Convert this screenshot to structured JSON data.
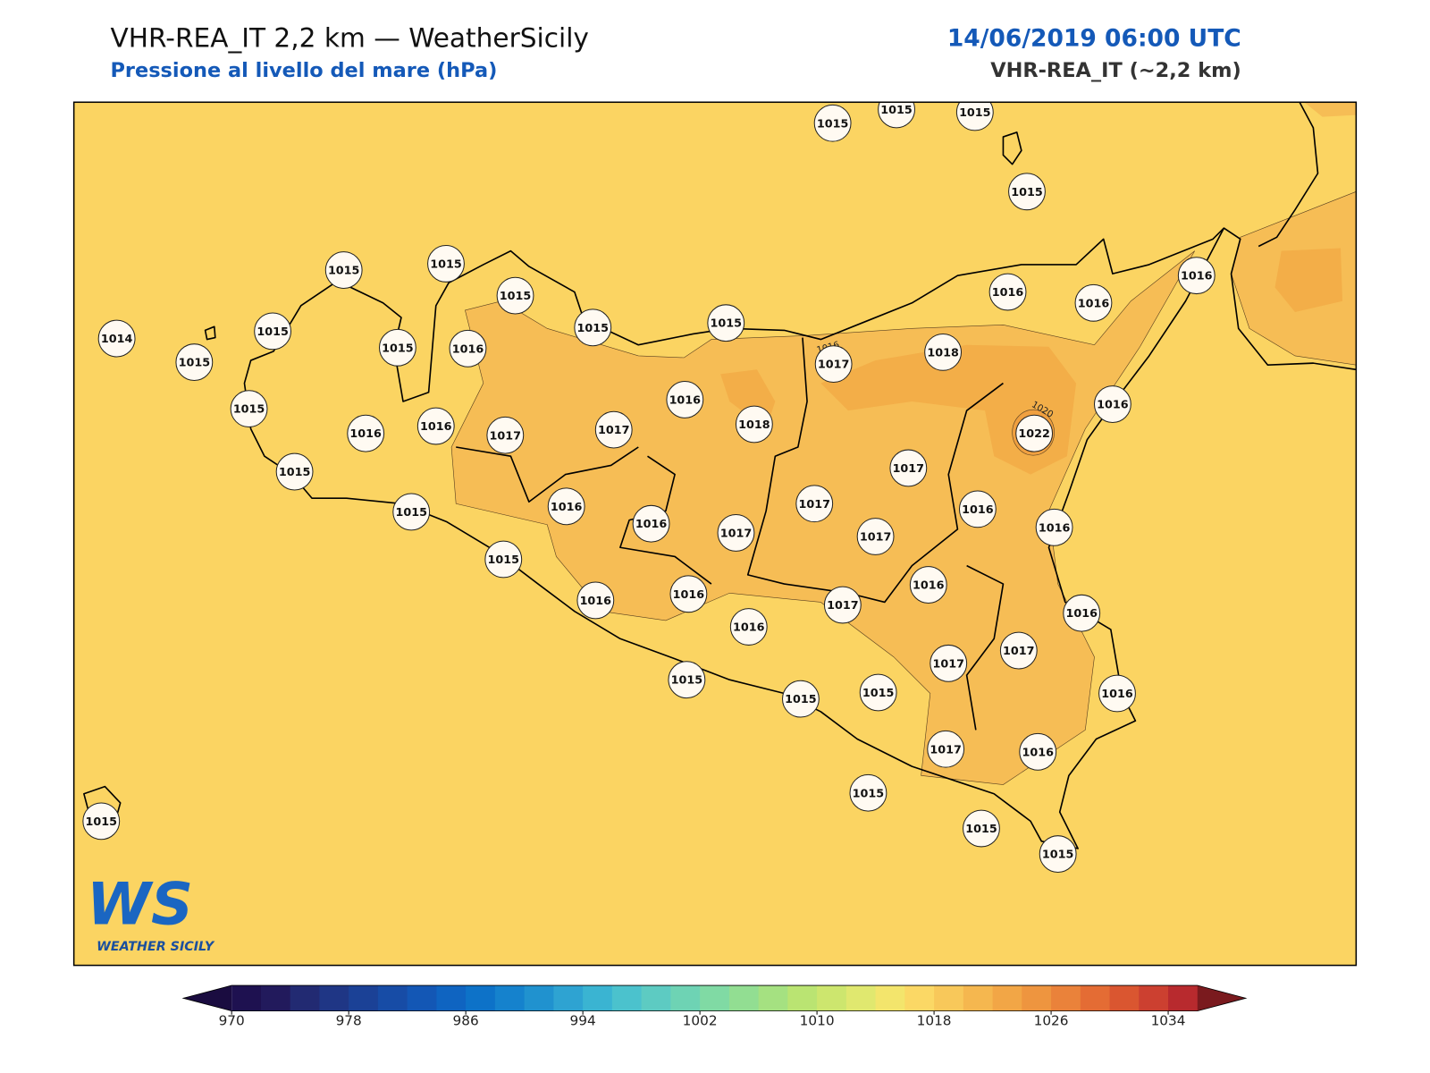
{
  "header": {
    "title": "VHR-REA_IT 2,2 km — WeatherSicily",
    "subtitle": "Pressione al livello del mare (hPa)",
    "date": "14/06/2019 06:00 UTC",
    "model": "VHR-REA_IT (~2,2 km)"
  },
  "contour_labels": [
    "1016",
    "1020"
  ],
  "stations": [
    "1015",
    "1015",
    "1015",
    "1015",
    "1015",
    "1015",
    "1015",
    "1015",
    "1014",
    "1015",
    "1015",
    "1016",
    "1015",
    "1015",
    "1016",
    "1016",
    "1016",
    "1017",
    "1018",
    "1015",
    "1016",
    "1016",
    "1017",
    "1017",
    "1016",
    "1018",
    "1016",
    "1022",
    "1015",
    "1017",
    "1015",
    "1016",
    "1016",
    "1017",
    "1017",
    "1016",
    "1017",
    "1016",
    "1015",
    "1016",
    "1016",
    "1016",
    "1017",
    "1016",
    "1016",
    "1017",
    "1017",
    "1015",
    "1015",
    "1015",
    "1016",
    "1017",
    "1016",
    "1015",
    "1015",
    "1015",
    "1015"
  ],
  "logo": {
    "mark": "WS",
    "name": "WEATHER SICILY"
  },
  "colorbar": {
    "lim": [
      970,
      1036
    ],
    "ticks": [
      970,
      978,
      986,
      994,
      1002,
      1010,
      1018,
      1026,
      1034
    ],
    "colors": [
      "#1e1150",
      "#221a5c",
      "#222a72",
      "#1f3685",
      "#1b4196",
      "#174ca6",
      "#1357b5",
      "#0f64c1",
      "#0d72c8",
      "#1582cd",
      "#2092cf",
      "#2ea3d2",
      "#3ab4d2",
      "#4bc2cd",
      "#5dcbc2",
      "#6ed3b4",
      "#80daa4",
      "#92de92",
      "#a5e181",
      "#bae472",
      "#cde66e",
      "#e0e86f",
      "#f3e56c",
      "#fbd865",
      "#f8c85a",
      "#f5b74f",
      "#f2a646",
      "#ee953f",
      "#ea823a",
      "#e46c34",
      "#da5630",
      "#cc4030",
      "#b82a2e"
    ],
    "under": "#1a0c40",
    "over": "#7a1a1e"
  }
}
